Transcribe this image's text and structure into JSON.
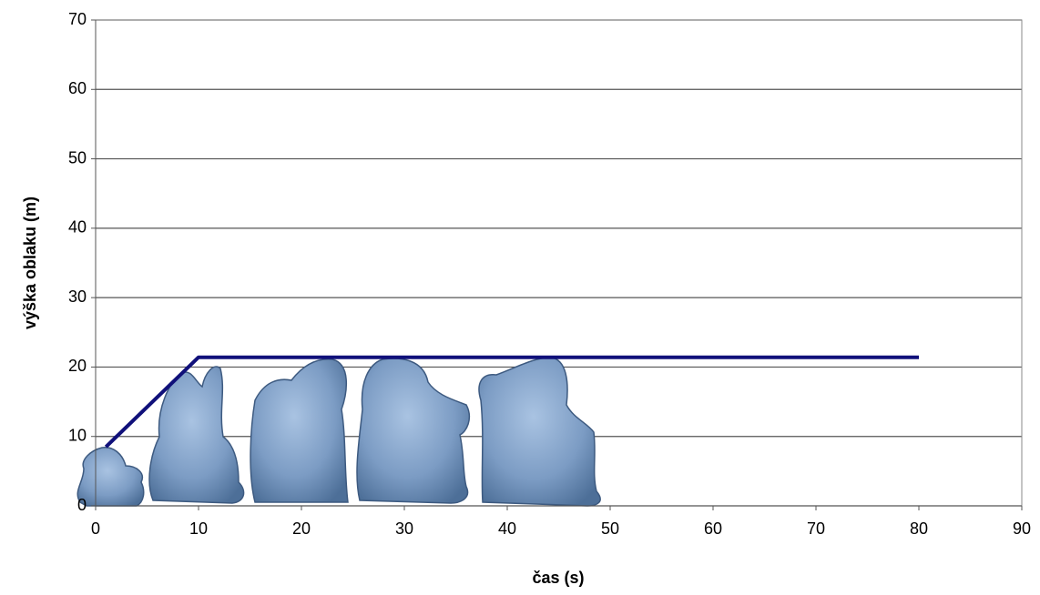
{
  "chart_data": {
    "type": "line",
    "x_label": "čas (s)",
    "y_label": "výška oblaku (m)",
    "series": [
      {
        "color": "#10107a",
        "x": [
          1,
          10,
          80
        ],
        "values": [
          8.5,
          21.4,
          21.4
        ]
      }
    ],
    "xlim": [
      0,
      90
    ],
    "xticks": [
      0,
      10,
      20,
      30,
      40,
      50,
      60,
      70,
      80,
      90
    ],
    "ylim": [
      0,
      70
    ],
    "yticks": [
      0,
      10,
      20,
      30,
      40,
      50,
      60,
      70
    ],
    "grid": true
  }
}
